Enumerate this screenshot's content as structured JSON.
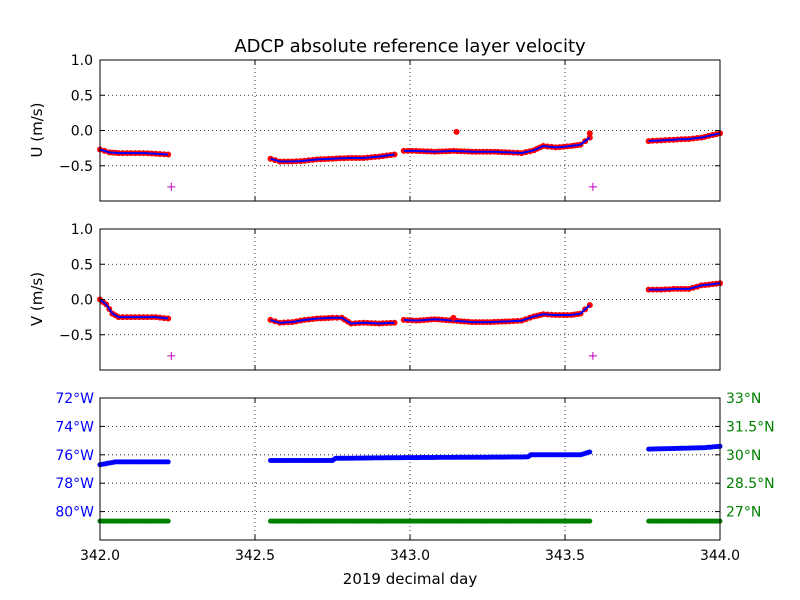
{
  "chart_data": [
    {
      "type": "scatter",
      "title": "ADCP absolute reference layer velocity",
      "ylabel": "U (m/s)",
      "xlabel": "",
      "xlim": [
        342.0,
        344.0
      ],
      "ylim": [
        -1.0,
        1.0
      ],
      "yticks": [
        "1.0",
        "0.5",
        "0.0",
        "−0.5"
      ],
      "ytick_values": [
        1.0,
        0.5,
        0.0,
        -0.5
      ],
      "grid": "dotted",
      "segments": [
        {
          "x": [
            342.0,
            342.03,
            342.06,
            342.1,
            342.14,
            342.18,
            342.22
          ],
          "y": [
            -0.27,
            -0.31,
            -0.32,
            -0.32,
            -0.32,
            -0.33,
            -0.34
          ]
        },
        {
          "x": [
            342.55,
            342.58,
            342.62,
            342.66,
            342.7,
            342.75,
            342.8,
            342.85,
            342.9,
            342.95
          ],
          "y": [
            -0.4,
            -0.44,
            -0.44,
            -0.43,
            -0.41,
            -0.4,
            -0.39,
            -0.39,
            -0.37,
            -0.34
          ]
        },
        {
          "x": [
            342.98,
            343.02,
            343.08,
            343.14,
            343.2,
            343.26,
            343.32,
            343.36,
            343.4,
            343.43,
            343.47,
            343.52,
            343.55,
            343.58
          ],
          "y": [
            -0.29,
            -0.29,
            -0.3,
            -0.29,
            -0.3,
            -0.3,
            -0.31,
            -0.32,
            -0.28,
            -0.22,
            -0.24,
            -0.22,
            -0.2,
            -0.1
          ]
        },
        {
          "x": [
            343.77,
            343.81,
            343.85,
            343.9,
            343.94,
            344.0
          ],
          "y": [
            -0.15,
            -0.14,
            -0.13,
            -0.12,
            -0.1,
            -0.04
          ]
        }
      ],
      "outliers": {
        "x": [
          343.15,
          343.58
        ],
        "y": [
          -0.02,
          -0.04
        ]
      },
      "flags": {
        "x": [
          342.23,
          343.59
        ],
        "y": [
          -0.8,
          -0.8
        ]
      },
      "colors": {
        "raw": "#ff0000",
        "smoothed": "#0000ff",
        "flag": "#bf00bf"
      }
    },
    {
      "type": "scatter",
      "title": "",
      "ylabel": "V (m/s)",
      "xlabel": "",
      "xlim": [
        342.0,
        344.0
      ],
      "ylim": [
        -1.0,
        1.0
      ],
      "yticks": [
        "1.0",
        "0.5",
        "0.0",
        "−0.5"
      ],
      "ytick_values": [
        1.0,
        0.5,
        0.0,
        -0.5
      ],
      "grid": "dotted",
      "segments": [
        {
          "x": [
            342.0,
            342.02,
            342.04,
            342.06,
            342.1,
            342.14,
            342.18,
            342.22
          ],
          "y": [
            0.0,
            -0.07,
            -0.2,
            -0.25,
            -0.25,
            -0.25,
            -0.25,
            -0.27
          ]
        },
        {
          "x": [
            342.55,
            342.58,
            342.62,
            342.66,
            342.7,
            342.75,
            342.78,
            342.81,
            342.85,
            342.9,
            342.95
          ],
          "y": [
            -0.29,
            -0.33,
            -0.32,
            -0.29,
            -0.27,
            -0.26,
            -0.26,
            -0.34,
            -0.33,
            -0.34,
            -0.33
          ]
        },
        {
          "x": [
            342.98,
            343.02,
            343.08,
            343.14,
            343.2,
            343.26,
            343.32,
            343.36,
            343.4,
            343.43,
            343.47,
            343.52,
            343.55,
            343.58
          ],
          "y": [
            -0.29,
            -0.3,
            -0.28,
            -0.3,
            -0.32,
            -0.32,
            -0.31,
            -0.3,
            -0.24,
            -0.21,
            -0.22,
            -0.22,
            -0.2,
            -0.08
          ]
        },
        {
          "x": [
            343.77,
            343.81,
            343.85,
            343.9,
            343.94,
            344.0
          ],
          "y": [
            0.14,
            0.14,
            0.15,
            0.15,
            0.2,
            0.23
          ]
        }
      ],
      "outliers": {
        "x": [
          343.14
        ],
        "y": [
          -0.26
        ]
      },
      "flags": {
        "x": [
          342.23,
          343.59
        ],
        "y": [
          -0.8,
          -0.8
        ]
      },
      "colors": {
        "raw": "#ff0000",
        "smoothed": "#0000ff",
        "flag": "#bf00bf"
      }
    },
    {
      "type": "line",
      "title": "",
      "xlabel": "2019 decimal day",
      "xlim": [
        342.0,
        344.0
      ],
      "xticks": [
        "342.0",
        "342.5",
        "343.0",
        "343.5",
        "344.0"
      ],
      "xtick_values": [
        342.0,
        342.5,
        343.0,
        343.5,
        344.0
      ],
      "grid": "dotted",
      "left_axis": {
        "name": "longitude",
        "lim": [
          -82.0,
          -72.0
        ],
        "ticks": [
          "72°W",
          "74°W",
          "76°W",
          "78°W",
          "80°W"
        ],
        "tick_values": [
          -72,
          -74,
          -76,
          -78,
          -80
        ],
        "color": "#0000ff"
      },
      "right_axis": {
        "name": "latitude",
        "lim": [
          25.5,
          33.0
        ],
        "ticks": [
          "33°N",
          "31.5°N",
          "30°N",
          "28.5°N",
          "27°N"
        ],
        "tick_values": [
          33.0,
          31.5,
          30.0,
          28.5,
          27.0
        ],
        "color": "#008000"
      },
      "longitude_segments": [
        {
          "x": [
            342.0,
            342.05,
            342.22
          ],
          "y": [
            -76.7,
            -76.5,
            -76.5
          ]
        },
        {
          "x": [
            342.55,
            342.75,
            342.76,
            342.98,
            343.38,
            343.39,
            343.55,
            343.58
          ],
          "y": [
            -76.4,
            -76.4,
            -76.25,
            -76.2,
            -76.15,
            -76.0,
            -76.0,
            -75.8
          ]
        },
        {
          "x": [
            343.77,
            343.95,
            344.0
          ],
          "y": [
            -75.6,
            -75.5,
            -75.4
          ]
        }
      ],
      "latitude_segments": [
        {
          "x": [
            342.0,
            342.22
          ],
          "y": [
            26.5,
            26.5
          ]
        },
        {
          "x": [
            342.55,
            343.58
          ],
          "y": [
            26.5,
            26.5
          ]
        },
        {
          "x": [
            343.77,
            344.0
          ],
          "y": [
            26.5,
            26.5
          ]
        }
      ]
    }
  ]
}
